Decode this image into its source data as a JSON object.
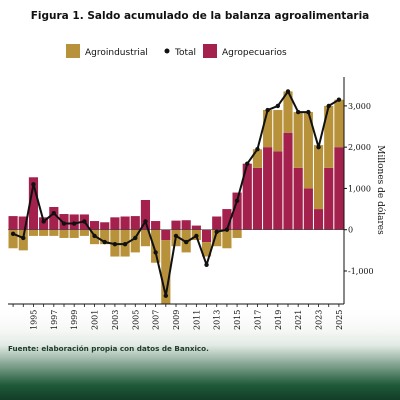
{
  "title": "Figura 1. Saldo acumulado de la balanza agroalimentaria",
  "source": "Fuente: elaboración propia con datos de Banxico.",
  "chart_data": {
    "type": "bar",
    "stacked": true,
    "ylabel": "Millones de dólares",
    "ylim": [
      -1800,
      3700
    ],
    "yticks": [
      -1000,
      0,
      1000,
      2000,
      3000
    ],
    "ytick_labels": [
      "-1,000",
      "0",
      "1,000",
      "2,000",
      "3,000"
    ],
    "xticks": [
      "1995",
      "1997",
      "1999",
      "2001",
      "2003",
      "2005",
      "2007",
      "2009",
      "2011",
      "2013",
      "2015",
      "2017",
      "2019",
      "2021",
      "2023",
      "2025"
    ],
    "x": [
      1993,
      1994,
      1995,
      1996,
      1997,
      1998,
      1999,
      2000,
      2001,
      2002,
      2003,
      2004,
      2005,
      2006,
      2007,
      2008,
      2009,
      2010,
      2011,
      2012,
      2013,
      2014,
      2015,
      2016,
      2017,
      2018,
      2019,
      2020,
      2021,
      2022,
      2023,
      2024,
      2025
    ],
    "legend": {
      "position": "top",
      "entries": [
        "Agroindustrial",
        "Total",
        "Agropecuarios"
      ]
    },
    "colors": {
      "agroindustrial": "#b8923a",
      "agropecuarios": "#a3214c",
      "total": "#111111"
    },
    "series": [
      {
        "name": "Agroindustrial",
        "kind": "bar",
        "values": [
          -450,
          -500,
          -150,
          -150,
          -150,
          -200,
          -200,
          -150,
          -350,
          -350,
          -650,
          -650,
          -550,
          -400,
          -800,
          -1550,
          -400,
          -550,
          -250,
          -350,
          -400,
          -450,
          -200,
          0,
          450,
          900,
          1000,
          1000,
          1350,
          1850,
          1550,
          1500,
          1150
        ]
      },
      {
        "name": "Agropecuarios",
        "kind": "bar",
        "values": [
          330,
          320,
          1270,
          300,
          550,
          380,
          370,
          370,
          210,
          180,
          300,
          320,
          330,
          720,
          210,
          -250,
          220,
          230,
          100,
          -300,
          320,
          500,
          900,
          1600,
          1500,
          2000,
          1900,
          2350,
          1500,
          1000,
          500,
          1500,
          2000
        ]
      },
      {
        "name": "Total",
        "kind": "line",
        "values": [
          -100,
          -200,
          1100,
          200,
          400,
          150,
          150,
          200,
          -150,
          -300,
          -350,
          -350,
          -200,
          200,
          -550,
          -1600,
          -150,
          -300,
          -150,
          -850,
          -50,
          0,
          700,
          1600,
          1950,
          2900,
          3000,
          3350,
          2850,
          2850,
          2000,
          3000,
          3150
        ]
      }
    ]
  }
}
